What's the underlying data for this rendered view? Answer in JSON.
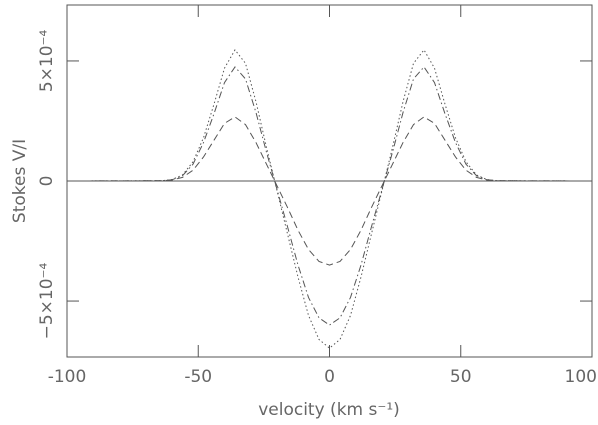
{
  "chart_data": {
    "type": "line",
    "xlabel": "velocity (km s⁻¹)",
    "ylabel": "Stokes V/I",
    "x": [
      -100,
      -64,
      -60,
      -56,
      -52,
      -48,
      -44,
      -40,
      -36,
      -32,
      -28,
      -24,
      -20,
      -16,
      -12,
      -8,
      -4,
      0,
      4,
      8,
      12,
      16,
      20,
      24,
      28,
      32,
      36,
      40,
      44,
      48,
      52,
      56,
      60,
      64,
      100
    ],
    "series": [
      {
        "color": "#555555",
        "dash": "1.5 2.5",
        "values": [
          0,
          1e-06,
          6e-06,
          2.5e-05,
          8e-05,
          0.00018,
          0.00032,
          0.00047,
          0.000546,
          0.00049,
          0.00033,
          0.00014,
          -4e-05,
          -0.00022,
          -0.0004,
          -0.00056,
          -0.00066,
          -0.000696,
          -0.00066,
          -0.00056,
          -0.0004,
          -0.00022,
          -4e-05,
          0.00014,
          0.00033,
          0.00049,
          0.000546,
          0.00047,
          0.00032,
          0.00018,
          8e-05,
          2.5e-05,
          6e-06,
          1e-06,
          0
        ]
      },
      {
        "color": "#555555",
        "dash": "7 3 1.5 3",
        "values": [
          0,
          1e-06,
          5e-06,
          2.2e-05,
          7e-05,
          0.00016,
          0.00028,
          0.00041,
          0.000475,
          0.000425,
          0.000285,
          0.00012,
          -3.5e-05,
          -0.00019,
          -0.00035,
          -0.000485,
          -0.00057,
          -0.0006,
          -0.00057,
          -0.000485,
          -0.00035,
          -0.00019,
          -3.5e-05,
          0.00012,
          0.000285,
          0.000425,
          0.000475,
          0.00041,
          0.00028,
          0.00016,
          7e-05,
          2.2e-05,
          5e-06,
          1e-06,
          0
        ]
      },
      {
        "color": "#555555",
        "dash": "7 4",
        "values": [
          0,
          1e-06,
          4e-06,
          1.5e-05,
          4.5e-05,
          0.0001,
          0.00017,
          0.00024,
          0.000267,
          0.000235,
          0.00016,
          7e-05,
          -2e-05,
          -0.00011,
          -0.000205,
          -0.000285,
          -0.000335,
          -0.00035,
          -0.000335,
          -0.000285,
          -0.000205,
          -0.00011,
          -2e-05,
          7e-05,
          0.00016,
          0.000235,
          0.000267,
          0.00024,
          0.00017,
          0.0001,
          4.5e-05,
          1.5e-05,
          4e-06,
          1e-06,
          0
        ]
      }
    ],
    "xlim": [
      -100,
      100
    ],
    "ylim": [
      -0.000733,
      0.000733
    ],
    "xticks": [
      -100,
      -50,
      0,
      50,
      100
    ],
    "yticks": [
      {
        "value": -0.0005,
        "label": "−5×10⁻⁴"
      },
      0,
      {
        "value": 0.0005,
        "label": "5×10⁻⁴"
      }
    ],
    "zero_line": true,
    "axis_color": "#555555"
  }
}
